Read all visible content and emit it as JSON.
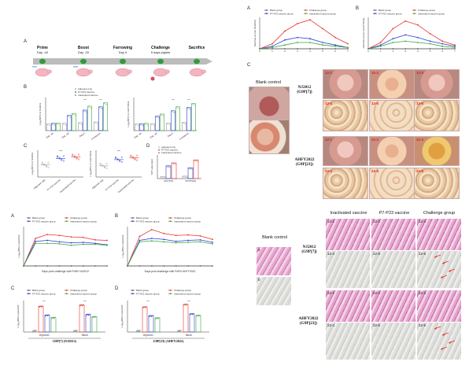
{
  "colors": {
    "blank": "#5a5a5a",
    "challenge": "#e8322a",
    "p7p23": "#2a3fd0",
    "inactivated": "#3aa640",
    "adjuvant": "#888888",
    "tissue_pink": "#e3a0c8",
    "tissue_purple": "#b86fae",
    "ihc_gray": "#d9d9d6",
    "arrow_red": "#e8322a"
  },
  "fig_top_left": {
    "panel_A": "A",
    "panel_B": "B",
    "panel_C": "C",
    "panel_D": "D",
    "timeline": {
      "steps": [
        {
          "title": "Prime",
          "day": "Day -40"
        },
        {
          "title": "Boost",
          "day": "Day -20"
        },
        {
          "title": "Farrowing",
          "day": "Day 0"
        },
        {
          "title": "Challenge",
          "day": "5 days piglets"
        },
        {
          "title": "Sacrifice",
          "day": ""
        }
      ]
    },
    "legend": [
      "Adjuvant only",
      "P7-P23 vaccine",
      "Inactivated vaccine"
    ],
    "b_left_ylabel": "Log₂(NPV) in NJ2012",
    "b_right_ylabel": "Log₂(NPV) in AHFY2022",
    "b_x": [
      "Day -40",
      "Day -20",
      "Day 0",
      "Colostrum"
    ],
    "c_x": [
      "Adjuvant only",
      "P7-P23 vaccine",
      "Inactivated vaccine"
    ],
    "c_left_ylabel": "Log₂(NPV) in NJ2012",
    "c_right_ylabel": "Log₂(NPV) in AHFY2022",
    "d_x": [
      "VP4*P[7]",
      "VP4*P[23]"
    ],
    "d_ylabel": "S/P value (IgA)",
    "sig": [
      "****",
      "***",
      "**",
      "*",
      "ns"
    ]
  },
  "fig_top_right": {
    "panel_A": "A",
    "panel_B": "B",
    "panel_C": "C",
    "legend": [
      "Blank group",
      "Challenge group",
      "P7-P23 vaccine group",
      "Inactivated vaccine group"
    ],
    "a_ylabel": "Diarrhea scores (NJ2012)",
    "b_ylabel": "Diarrhea scores (AHFY2022)",
    "x_ticks": [
      "0",
      "1",
      "2",
      "3",
      "4",
      "5",
      "6",
      "7"
    ],
    "blank_control": "Blank control",
    "nj_label": "NJ2012\n(G9P[7])",
    "ah_label": "AHFY2022\n(G9P[23])",
    "nj_tiles": [
      "12-1",
      "12-2",
      "12-3",
      "12-4",
      "12-5",
      "12-6"
    ],
    "ah_tiles": [
      "22-1",
      "22-2",
      "22-3",
      "22-4",
      "22-5",
      "22-6"
    ]
  },
  "fig_bottom_left": {
    "panel_A": "A",
    "panel_B": "B",
    "panel_C": "C",
    "panel_D": "D",
    "legend": [
      "Blank group",
      "Challenge group",
      "P7-P23 vaccine group",
      "Inactivated vaccine group"
    ],
    "a_xlabel": "Days post-challenge with PoRV NJ2012",
    "b_xlabel": "Days post-challenge with PoRV AHFY2022",
    "ylabel": "Log₁₀(RNA copies/ml)",
    "ylabel_c": "Log₁₀(RNA copies/ml)",
    "c_x": [
      "Jejunum",
      "Ileum"
    ],
    "d_x": [
      "Jejunum",
      "Ileum"
    ],
    "c_caption": "G9P[7] (NJ2012)",
    "d_caption": "G9P[23] (AHFY2022)"
  },
  "fig_bottom_right": {
    "col_heads": [
      "Inactivated vaccine",
      "P7-P23 vaccine",
      "Challenge group"
    ],
    "blank_control": "Blank control",
    "blank_tiles": [
      "a",
      "b"
    ],
    "nj_label": "NJ2012\n(G9P[7])",
    "ah_label": "AHFY2022\n(G9P[23])",
    "nj_tiles": [
      "12-1",
      "12-2",
      "12-3",
      "12-4",
      "12-5",
      "12-6"
    ],
    "ah_tiles": [
      "22-1",
      "22-2",
      "22-3",
      "22-4",
      "22-5",
      "22-6"
    ]
  },
  "chart_data": [
    {
      "type": "line",
      "title": "",
      "ylabel": "Log₂(NPV) in NJ2012",
      "categories": [
        "Day -40",
        "Day -20",
        "Day 0",
        "Colostrum"
      ],
      "series": [
        {
          "name": "Adjuvant only",
          "values": [
            2.0,
            2.2,
            2.4,
            2.6
          ]
        },
        {
          "name": "P7-P23 vaccine",
          "values": [
            2.2,
            4.6,
            6.2,
            7.2
          ]
        },
        {
          "name": "Inactivated vaccine",
          "values": [
            2.3,
            5.2,
            7.4,
            8.4
          ]
        }
      ],
      "ylim": [
        0,
        10
      ]
    },
    {
      "type": "line",
      "title": "",
      "ylabel": "Log₂(NPV) in AHFY2022",
      "categories": [
        "Day -40",
        "Day -20",
        "Day 0",
        "Colostrum"
      ],
      "series": [
        {
          "name": "Adjuvant only",
          "values": [
            2.0,
            2.1,
            2.3,
            2.5
          ]
        },
        {
          "name": "P7-P23 vaccine",
          "values": [
            2.1,
            4.4,
            6.0,
            7.0
          ]
        },
        {
          "name": "Inactivated vaccine",
          "values": [
            2.2,
            5.0,
            7.2,
            8.2
          ]
        }
      ],
      "ylim": [
        0,
        10
      ]
    },
    {
      "type": "line",
      "title": "",
      "ylabel": "Diarrhea scores (NJ2012)",
      "x": [
        0,
        1,
        2,
        3,
        4,
        5,
        6,
        7
      ],
      "series": [
        {
          "name": "Blank group",
          "values": [
            0,
            0,
            0,
            0,
            0,
            0,
            0,
            0
          ]
        },
        {
          "name": "Challenge group",
          "values": [
            0,
            0.4,
            1.4,
            2.0,
            2.3,
            1.6,
            0.9,
            0.4
          ]
        },
        {
          "name": "P7-P23 vaccine group",
          "values": [
            0,
            0.2,
            0.7,
            0.9,
            0.8,
            0.5,
            0.3,
            0.1
          ]
        },
        {
          "name": "Inactivated vaccine group",
          "values": [
            0,
            0.1,
            0.3,
            0.5,
            0.5,
            0.3,
            0.2,
            0.1
          ]
        }
      ],
      "ylim": [
        0,
        2.5
      ]
    },
    {
      "type": "line",
      "title": "",
      "ylabel": "Diarrhea scores (AHFY2022)",
      "x": [
        0,
        1,
        2,
        3,
        4,
        5,
        6,
        7
      ],
      "series": [
        {
          "name": "Blank group",
          "values": [
            0,
            0,
            0,
            0,
            0,
            0,
            0,
            0
          ]
        },
        {
          "name": "Challenge group",
          "values": [
            0,
            0.5,
            1.6,
            2.2,
            1.9,
            1.2,
            0.6,
            0.3
          ]
        },
        {
          "name": "P7-P23 vaccine group",
          "values": [
            0,
            0.3,
            0.8,
            1.1,
            0.9,
            0.6,
            0.4,
            0.2
          ]
        },
        {
          "name": "Inactivated vaccine group",
          "values": [
            0,
            0.2,
            0.5,
            0.6,
            0.5,
            0.4,
            0.2,
            0.1
          ]
        }
      ],
      "ylim": [
        0,
        2.5
      ]
    },
    {
      "type": "line",
      "title": "",
      "xlabel": "Days post-challenge with PoRV NJ2012",
      "ylabel": "Log₁₀(RNA copies/ml)",
      "x": [
        0,
        1,
        2,
        3,
        4,
        5,
        6,
        7
      ],
      "series": [
        {
          "name": "Blank group",
          "values": [
            0,
            0,
            0,
            0,
            0,
            0,
            0,
            0
          ]
        },
        {
          "name": "Challenge group",
          "values": [
            0,
            5.6,
            6.4,
            6.2,
            5.9,
            5.8,
            5.3,
            5.2
          ]
        },
        {
          "name": "P7-P23 vaccine group",
          "values": [
            0,
            5.0,
            5.2,
            4.9,
            4.7,
            4.8,
            4.6,
            4.3
          ]
        },
        {
          "name": "Inactivated vaccine group",
          "values": [
            0,
            4.6,
            4.6,
            4.5,
            4.2,
            4.4,
            4.4,
            4.2
          ]
        }
      ],
      "ylim": [
        0,
        8
      ]
    },
    {
      "type": "line",
      "title": "",
      "xlabel": "Days post-challenge with PoRV AHFY2022",
      "ylabel": "Log₁₀(RNA copies/ml)",
      "x": [
        0,
        1,
        2,
        3,
        4,
        5,
        6,
        7
      ],
      "series": [
        {
          "name": "Blank group",
          "values": [
            0,
            0,
            0,
            0,
            0,
            0,
            0,
            0
          ]
        },
        {
          "name": "Challenge group",
          "values": [
            0,
            6.0,
            7.4,
            6.6,
            6.2,
            6.3,
            6.1,
            5.4
          ]
        },
        {
          "name": "P7-P23 vaccine group",
          "values": [
            0,
            5.2,
            5.6,
            5.4,
            5.0,
            5.2,
            5.3,
            4.8
          ]
        },
        {
          "name": "Inactivated vaccine group",
          "values": [
            0,
            4.9,
            5.1,
            4.9,
            4.7,
            4.8,
            4.9,
            4.5
          ]
        }
      ],
      "ylim": [
        0,
        8
      ]
    },
    {
      "type": "bar",
      "title": "",
      "ylabel": "Log₁₀(RNA copies/ml)",
      "categories": [
        "Jejunum",
        "Ileum"
      ],
      "series": [
        {
          "name": "Blank group",
          "values": [
            0,
            0
          ]
        },
        {
          "name": "Challenge group",
          "values": [
            8.2,
            8.6
          ]
        },
        {
          "name": "P7-P23 vaccine group",
          "values": [
            5.4,
            5.6
          ]
        },
        {
          "name": "Inactivated vaccine group",
          "values": [
            4.6,
            4.9
          ]
        }
      ],
      "ylim": [
        0,
        10
      ]
    },
    {
      "type": "bar",
      "title": "",
      "ylabel": "Log₁₀(RNA copies/ml)",
      "categories": [
        "Jejunum",
        "Ileum"
      ],
      "series": [
        {
          "name": "Blank group",
          "values": [
            0,
            0
          ]
        },
        {
          "name": "Challenge group",
          "values": [
            8.0,
            8.8
          ]
        },
        {
          "name": "P7-P23 vaccine group",
          "values": [
            5.2,
            5.8
          ]
        },
        {
          "name": "Inactivated vaccine group",
          "values": [
            4.5,
            5.3
          ]
        }
      ],
      "ylim": [
        0,
        10
      ]
    }
  ]
}
